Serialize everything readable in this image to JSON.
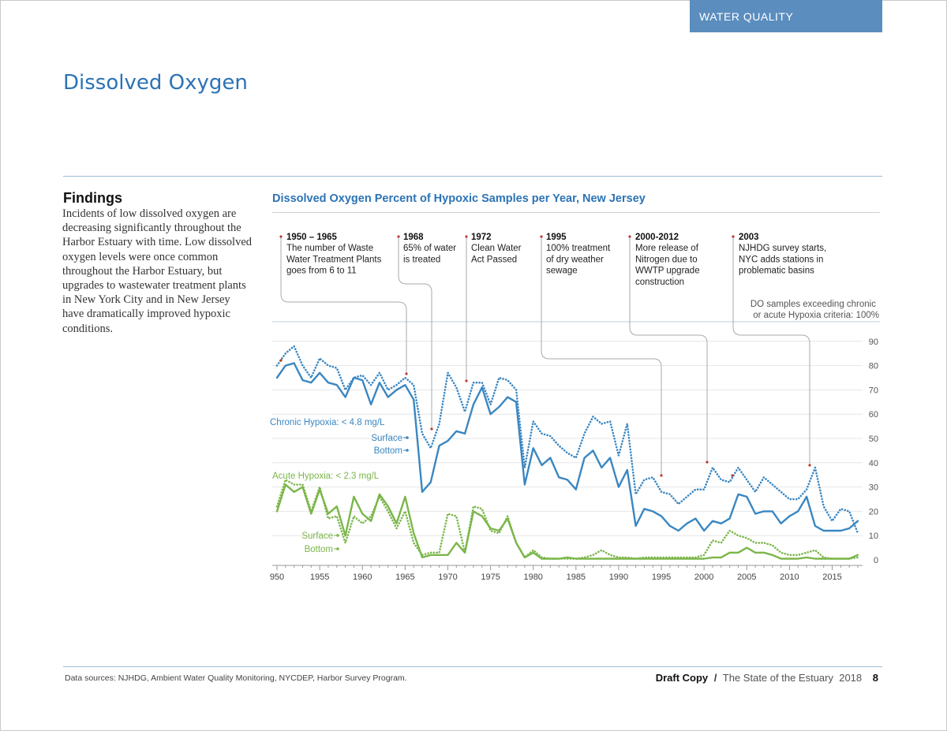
{
  "section_label": "WATER QUALITY",
  "page_title": "Dissolved Oxygen",
  "findings": {
    "heading": "Findings",
    "body": "Incidents of low dissolved oxygen are decreasing significantly throughout the Harbor Estuary with time. Low dissolved oxygen levels were once common throughout the Harbor Estuary, but upgrades to wastewater treatment plants in New York City and in New Jersey have dramatically improved hypoxic conditions."
  },
  "footer": {
    "source": "Data sources: NJHDG, Ambient Water Quality Monitoring, NYCDEP, Harbor Survey Program.",
    "draft": "Draft Copy",
    "separator": "/",
    "publication": "The State of the Estuary  2018",
    "page_number": "8"
  },
  "colors": {
    "chronic": "#3a87c2",
    "acute": "#7bb64a",
    "accent": "#2b73b5",
    "tab": "#5b8dbf",
    "marker": "#c0392b"
  },
  "chart_data": {
    "type": "line",
    "title": "Dissolved Oxygen Percent of  Hypoxic Samples per Year, New Jersey",
    "y_axis_note_line1": "DO samples exceeding chronic",
    "y_axis_note_line2": "or acute Hypoxia criteria: 100%",
    "xlim": [
      1950,
      2018
    ],
    "ylim": [
      0,
      100
    ],
    "x_ticks": [
      "950",
      "1955",
      "1960",
      "1965",
      "1970",
      "1975",
      "1980",
      "1985",
      "1990",
      "1995",
      "2000",
      "2005",
      "2010",
      "2015"
    ],
    "y_ticks": [
      "0",
      "10",
      "20",
      "30",
      "40",
      "50",
      "60",
      "70",
      "80",
      "90"
    ],
    "grid": true,
    "groups": [
      {
        "label": "Chronic Hypoxia: < 4.8 mg/L",
        "surface_label": "Surface",
        "bottom_label": "Bottom"
      },
      {
        "label": "Acute Hypoxia: < 2.3 mg/L",
        "surface_label": "Surface",
        "bottom_label": "Bottom"
      }
    ],
    "x": [
      1950,
      1951,
      1952,
      1953,
      1954,
      1955,
      1956,
      1957,
      1958,
      1959,
      1960,
      1961,
      1962,
      1963,
      1964,
      1965,
      1966,
      1967,
      1968,
      1969,
      1970,
      1971,
      1972,
      1973,
      1974,
      1975,
      1976,
      1977,
      1978,
      1979,
      1980,
      1981,
      1982,
      1983,
      1984,
      1985,
      1986,
      1987,
      1988,
      1989,
      1990,
      1991,
      1992,
      1993,
      1994,
      1995,
      1996,
      1997,
      1998,
      1999,
      2000,
      2001,
      2002,
      2003,
      2004,
      2005,
      2006,
      2007,
      2008,
      2009,
      2010,
      2011,
      2012,
      2013,
      2014,
      2015,
      2016,
      2017,
      2018
    ],
    "series": [
      {
        "key": "chronic_bottom",
        "style": "solid",
        "values": [
          75,
          80,
          81,
          74,
          73,
          77,
          73,
          72,
          67,
          75,
          74,
          64,
          73,
          67,
          70,
          72,
          66,
          28,
          32,
          47,
          49,
          53,
          52,
          64,
          71,
          60,
          63,
          67,
          65,
          31,
          46,
          39,
          42,
          34,
          33,
          29,
          42,
          45,
          38,
          42,
          30,
          37,
          14,
          21,
          20,
          18,
          14,
          12,
          15,
          17,
          12,
          16,
          15,
          17,
          27,
          26,
          19,
          20,
          20,
          15,
          18,
          20,
          26,
          14,
          12,
          12,
          12,
          13,
          16
        ]
      },
      {
        "key": "chronic_surface",
        "style": "dotted",
        "values": [
          80,
          85,
          88,
          80,
          75,
          83,
          80,
          79,
          70,
          75,
          76,
          72,
          77,
          70,
          72,
          75,
          72,
          52,
          46,
          56,
          77,
          71,
          61,
          73,
          73,
          64,
          75,
          74,
          70,
          38,
          57,
          52,
          51,
          47,
          44,
          42,
          52,
          59,
          56,
          57,
          43,
          56,
          27,
          33,
          34,
          28,
          27,
          23,
          26,
          29,
          29,
          38,
          33,
          32,
          38,
          33,
          28,
          34,
          31,
          28,
          25,
          25,
          29,
          38,
          22,
          16,
          21,
          20,
          11
        ]
      },
      {
        "key": "acute_bottom",
        "style": "solid",
        "values": [
          20,
          31,
          28,
          30,
          19,
          29,
          19,
          22,
          10,
          26,
          19,
          16,
          27,
          22,
          15,
          26,
          11,
          1,
          2,
          2,
          2,
          7,
          3,
          20,
          18,
          13,
          12,
          17,
          7,
          1,
          3,
          0.5,
          0.5,
          0.5,
          1,
          0.5,
          0.5,
          0.5,
          0.5,
          0.5,
          0.5,
          0.5,
          0.5,
          0.5,
          0.5,
          0.5,
          0.5,
          0.5,
          0.5,
          0.5,
          0.5,
          1,
          1,
          3,
          3,
          5,
          3,
          3,
          2,
          0.5,
          0.5,
          0.5,
          1,
          0.5,
          0.5,
          0.5,
          0.5,
          0.5,
          2
        ]
      },
      {
        "key": "acute_surface",
        "style": "dotted",
        "values": [
          22,
          33,
          31,
          31,
          20,
          30,
          17,
          18,
          7,
          18,
          15,
          18,
          26,
          20,
          13,
          20,
          7,
          2,
          3,
          3,
          19,
          18,
          3,
          22,
          21,
          12,
          11,
          18,
          7,
          1,
          4,
          1,
          0.5,
          0.5,
          0.5,
          0.5,
          1,
          2,
          4,
          2,
          1,
          1,
          0.5,
          1,
          1,
          1,
          1,
          1,
          1,
          1,
          2,
          8,
          7,
          12,
          10,
          9,
          7,
          7,
          6,
          3,
          2,
          2,
          3,
          4,
          1,
          0.5,
          0.5,
          0.5,
          1
        ]
      }
    ],
    "annotations": [
      {
        "year_label": "1950 – 1965",
        "text": [
          "The number of Waste",
          "Water Treatment Plants",
          "goes from 6 to 11"
        ]
      },
      {
        "year_label": "1968",
        "text": [
          "65% of water",
          "is treated"
        ]
      },
      {
        "year_label": "1972",
        "text": [
          "Clean Water",
          "Act Passed"
        ]
      },
      {
        "year_label": "1995",
        "text": [
          "100% treatment",
          "of dry weather",
          "sewage"
        ]
      },
      {
        "year_label": "2000-2012",
        "text": [
          "More release of",
          "Nitrogen due to",
          "WWTP upgrade",
          "construction"
        ]
      },
      {
        "year_label": "2003",
        "text": [
          "NJHDG survey starts,",
          "NYC adds stations in",
          "problematic basins"
        ]
      }
    ]
  }
}
